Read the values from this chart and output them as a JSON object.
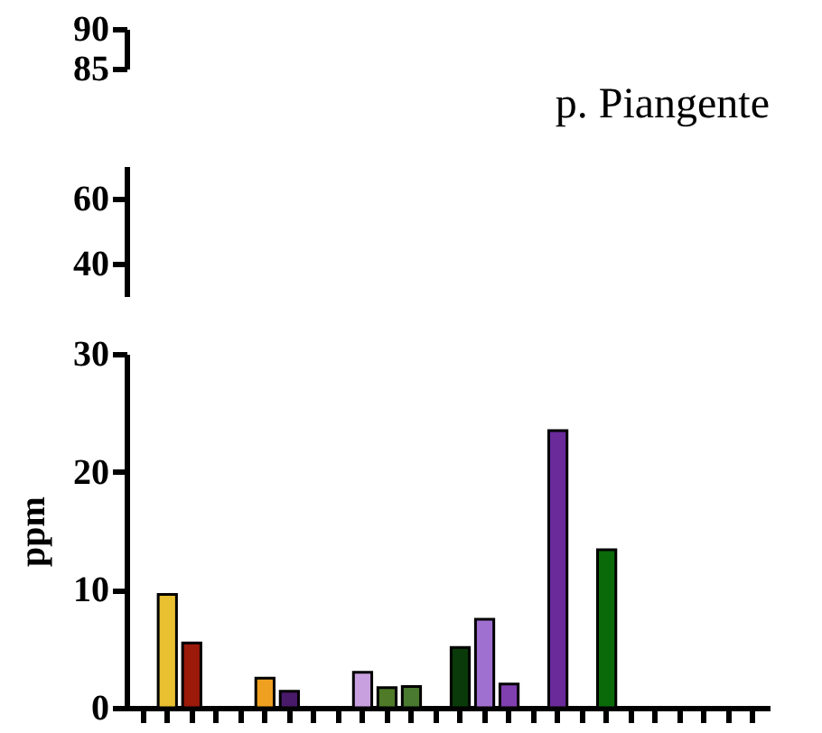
{
  "chart_data": [
    {
      "type": "other",
      "title": "p. Piangente",
      "annotations": [
        "90",
        "85"
      ]
    },
    {
      "type": "other",
      "annotations": [
        "60",
        "40"
      ]
    },
    {
      "type": "bar",
      "ylabel": "ppm",
      "categories": [
        null,
        null,
        null,
        null,
        null,
        null,
        null,
        null,
        null,
        null,
        null,
        null,
        null,
        null,
        null,
        null,
        null,
        null,
        null,
        null,
        null,
        null,
        null,
        null,
        null,
        null
      ],
      "values": [
        null,
        9.6,
        5.5,
        null,
        null,
        2.5,
        1.4,
        null,
        null,
        3.0,
        1.7,
        1.8,
        null,
        5.1,
        7.5,
        2.0,
        null,
        23.5,
        null,
        13.4,
        null,
        null,
        null,
        null,
        null,
        null
      ],
      "colors": [
        "#808080",
        "#e8c030",
        "#9b1a0a",
        "#808080",
        "#808080",
        "#f0a020",
        "#4a1a6a",
        "#808080",
        "#808080",
        "#c8a0e0",
        "#4f7a28",
        "#4a7a30",
        "#808080",
        "#0a3a0a",
        "#a070d0",
        "#8040b0",
        "#808080",
        "#6a2a9a",
        "#808080",
        "#0a6a0a",
        "#808080",
        "#808080",
        "#808080",
        "#808080",
        "#808080",
        "#808080"
      ],
      "ylim": [
        0,
        30
      ],
      "yticks": [
        0,
        10,
        20,
        30
      ],
      "tick_labels": "y"
    }
  ]
}
